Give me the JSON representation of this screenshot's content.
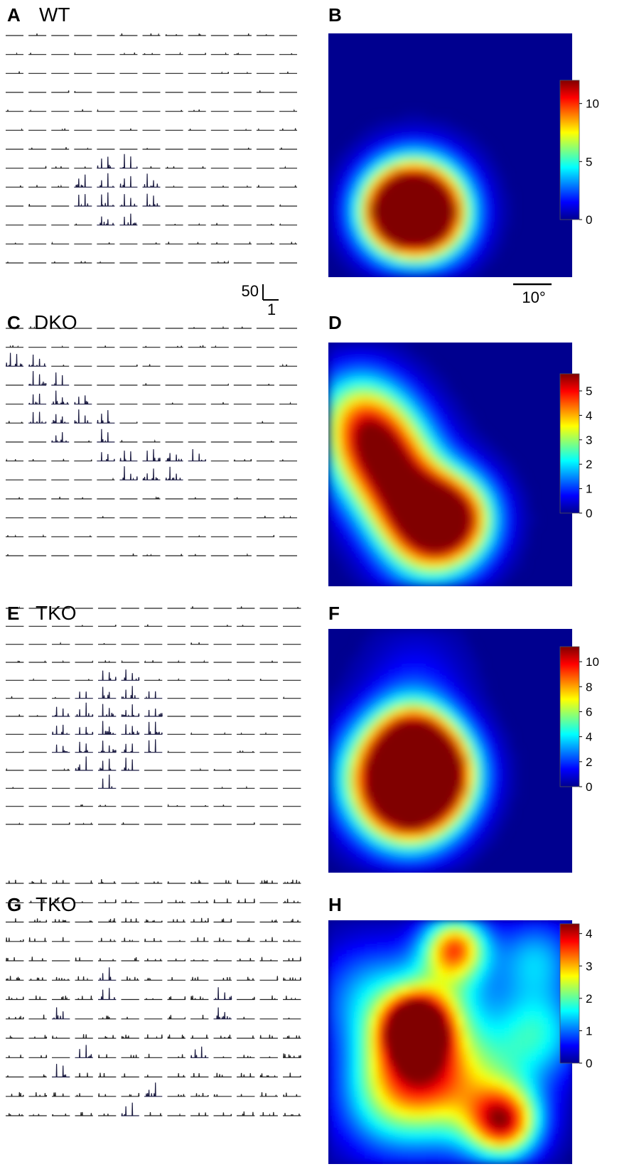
{
  "chart_data": [
    {
      "type": "heatmap",
      "panel": "A",
      "title": "WT",
      "grid": [
        13,
        13
      ],
      "peak_cells": [
        [
          7,
          4
        ],
        [
          7,
          5
        ],
        [
          8,
          3
        ],
        [
          8,
          4
        ],
        [
          8,
          5
        ],
        [
          8,
          6
        ],
        [
          9,
          3
        ],
        [
          9,
          4
        ],
        [
          9,
          5
        ],
        [
          9,
          6
        ],
        [
          10,
          4
        ],
        [
          10,
          5
        ]
      ],
      "scale_bar": {
        "y_label": "50",
        "x_label": "1"
      }
    },
    {
      "type": "heatmap",
      "panel": "B",
      "colorbar": {
        "min": 0,
        "max": 12,
        "ticks": [
          0,
          5,
          10
        ]
      },
      "scale_bar": {
        "label": "10°"
      },
      "hotspots": [
        {
          "x": 3.6,
          "y": 7.0,
          "value": 12,
          "spread": 1.3
        },
        {
          "x": 2.9,
          "y": 7.4,
          "value": 10,
          "spread": 1.1
        },
        {
          "x": 4.2,
          "y": 7.6,
          "value": 7,
          "spread": 1.1
        }
      ]
    },
    {
      "type": "heatmap",
      "panel": "C",
      "title": "DKO",
      "grid": [
        13,
        13
      ],
      "peak_cells": [
        [
          2,
          0
        ],
        [
          2,
          1
        ],
        [
          3,
          1
        ],
        [
          3,
          2
        ],
        [
          4,
          1
        ],
        [
          4,
          2
        ],
        [
          4,
          3
        ],
        [
          5,
          1
        ],
        [
          5,
          2
        ],
        [
          5,
          3
        ],
        [
          5,
          4
        ],
        [
          6,
          2
        ],
        [
          6,
          4
        ],
        [
          7,
          4
        ],
        [
          7,
          5
        ],
        [
          7,
          6
        ],
        [
          7,
          7
        ],
        [
          7,
          8
        ],
        [
          8,
          5
        ],
        [
          8,
          6
        ],
        [
          8,
          7
        ]
      ],
      "scale_bar": {
        "y_label": "",
        "x_label": ""
      }
    },
    {
      "type": "heatmap",
      "panel": "D",
      "colorbar": {
        "min": 0,
        "max": 5.7,
        "ticks": [
          0,
          1,
          2,
          3,
          4,
          5
        ]
      },
      "hotspots": [
        {
          "x": 2.1,
          "y": 4.5,
          "value": 5.0,
          "spread": 1.4
        },
        {
          "x": 1.2,
          "y": 2.8,
          "value": 2.5,
          "spread": 1.3
        },
        {
          "x": 3.2,
          "y": 6.5,
          "value": 4.0,
          "spread": 1.3
        },
        {
          "x": 5.0,
          "y": 7.2,
          "value": 5.7,
          "spread": 1.2
        },
        {
          "x": 4.0,
          "y": 8.3,
          "value": 2.5,
          "spread": 1.3
        }
      ]
    },
    {
      "type": "heatmap",
      "panel": "E",
      "title": "TKO",
      "grid": [
        13,
        13
      ],
      "peak_cells": [
        [
          4,
          4
        ],
        [
          4,
          5
        ],
        [
          5,
          3
        ],
        [
          5,
          4
        ],
        [
          5,
          5
        ],
        [
          5,
          6
        ],
        [
          6,
          2
        ],
        [
          6,
          3
        ],
        [
          6,
          4
        ],
        [
          6,
          5
        ],
        [
          6,
          6
        ],
        [
          7,
          2
        ],
        [
          7,
          3
        ],
        [
          7,
          4
        ],
        [
          7,
          5
        ],
        [
          7,
          6
        ],
        [
          8,
          2
        ],
        [
          8,
          3
        ],
        [
          8,
          4
        ],
        [
          8,
          5
        ],
        [
          8,
          6
        ],
        [
          9,
          3
        ],
        [
          9,
          4
        ],
        [
          9,
          5
        ],
        [
          10,
          4
        ]
      ],
      "scale_bar": {
        "y_label": "",
        "x_label": ""
      }
    },
    {
      "type": "heatmap",
      "panel": "F",
      "colorbar": {
        "min": 0,
        "max": 11.2,
        "ticks": [
          0,
          2,
          4,
          6,
          8,
          10
        ]
      },
      "hotspots": [
        {
          "x": 2.7,
          "y": 6.0,
          "value": 10.0,
          "spread": 1.5
        },
        {
          "x": 4.3,
          "y": 5.9,
          "value": 11.0,
          "spread": 1.2
        },
        {
          "x": 3.5,
          "y": 4.6,
          "value": 7.5,
          "spread": 1.1
        },
        {
          "x": 3.4,
          "y": 7.1,
          "value": 9.0,
          "spread": 1.3
        },
        {
          "x": 3.6,
          "y": 2.0,
          "value": 1.3,
          "spread": 1.4
        }
      ]
    },
    {
      "type": "heatmap",
      "panel": "G",
      "title": "TKO",
      "grid": [
        13,
        13
      ],
      "peak_cells": [
        [
          5,
          4
        ],
        [
          6,
          4
        ],
        [
          6,
          9
        ],
        [
          7,
          2
        ],
        [
          7,
          9
        ],
        [
          9,
          3
        ],
        [
          9,
          8
        ],
        [
          10,
          2
        ],
        [
          11,
          6
        ],
        [
          12,
          5
        ]
      ],
      "scale_bar": {
        "y_label": "",
        "x_label": ""
      }
    },
    {
      "type": "heatmap",
      "panel": "H",
      "colorbar": {
        "min": 0,
        "max": 4.3,
        "ticks": [
          0,
          1,
          2,
          3,
          4
        ]
      },
      "hotspots": [
        {
          "x": 3.6,
          "y": 4.4,
          "value": 4.0,
          "spread": 0.9
        },
        {
          "x": 5.2,
          "y": 1.1,
          "value": 3.0,
          "spread": 0.9
        },
        {
          "x": 3.6,
          "y": 5.8,
          "value": 2.5,
          "spread": 1.5
        },
        {
          "x": 5.8,
          "y": 6.9,
          "value": 1.8,
          "spread": 1.8
        },
        {
          "x": 7.2,
          "y": 8.3,
          "value": 3.2,
          "spread": 1.0
        },
        {
          "x": 2.5,
          "y": 7.5,
          "value": 1.4,
          "spread": 1.6
        },
        {
          "x": 1.8,
          "y": 3.2,
          "value": 1.3,
          "spread": 1.6
        },
        {
          "x": 8.6,
          "y": 4.6,
          "value": 1.5,
          "spread": 1.3
        },
        {
          "x": 4.8,
          "y": 3.0,
          "value": 1.2,
          "spread": 1.3
        },
        {
          "x": 8.5,
          "y": 1.6,
          "value": 1.3,
          "spread": 1.2
        }
      ]
    }
  ]
}
